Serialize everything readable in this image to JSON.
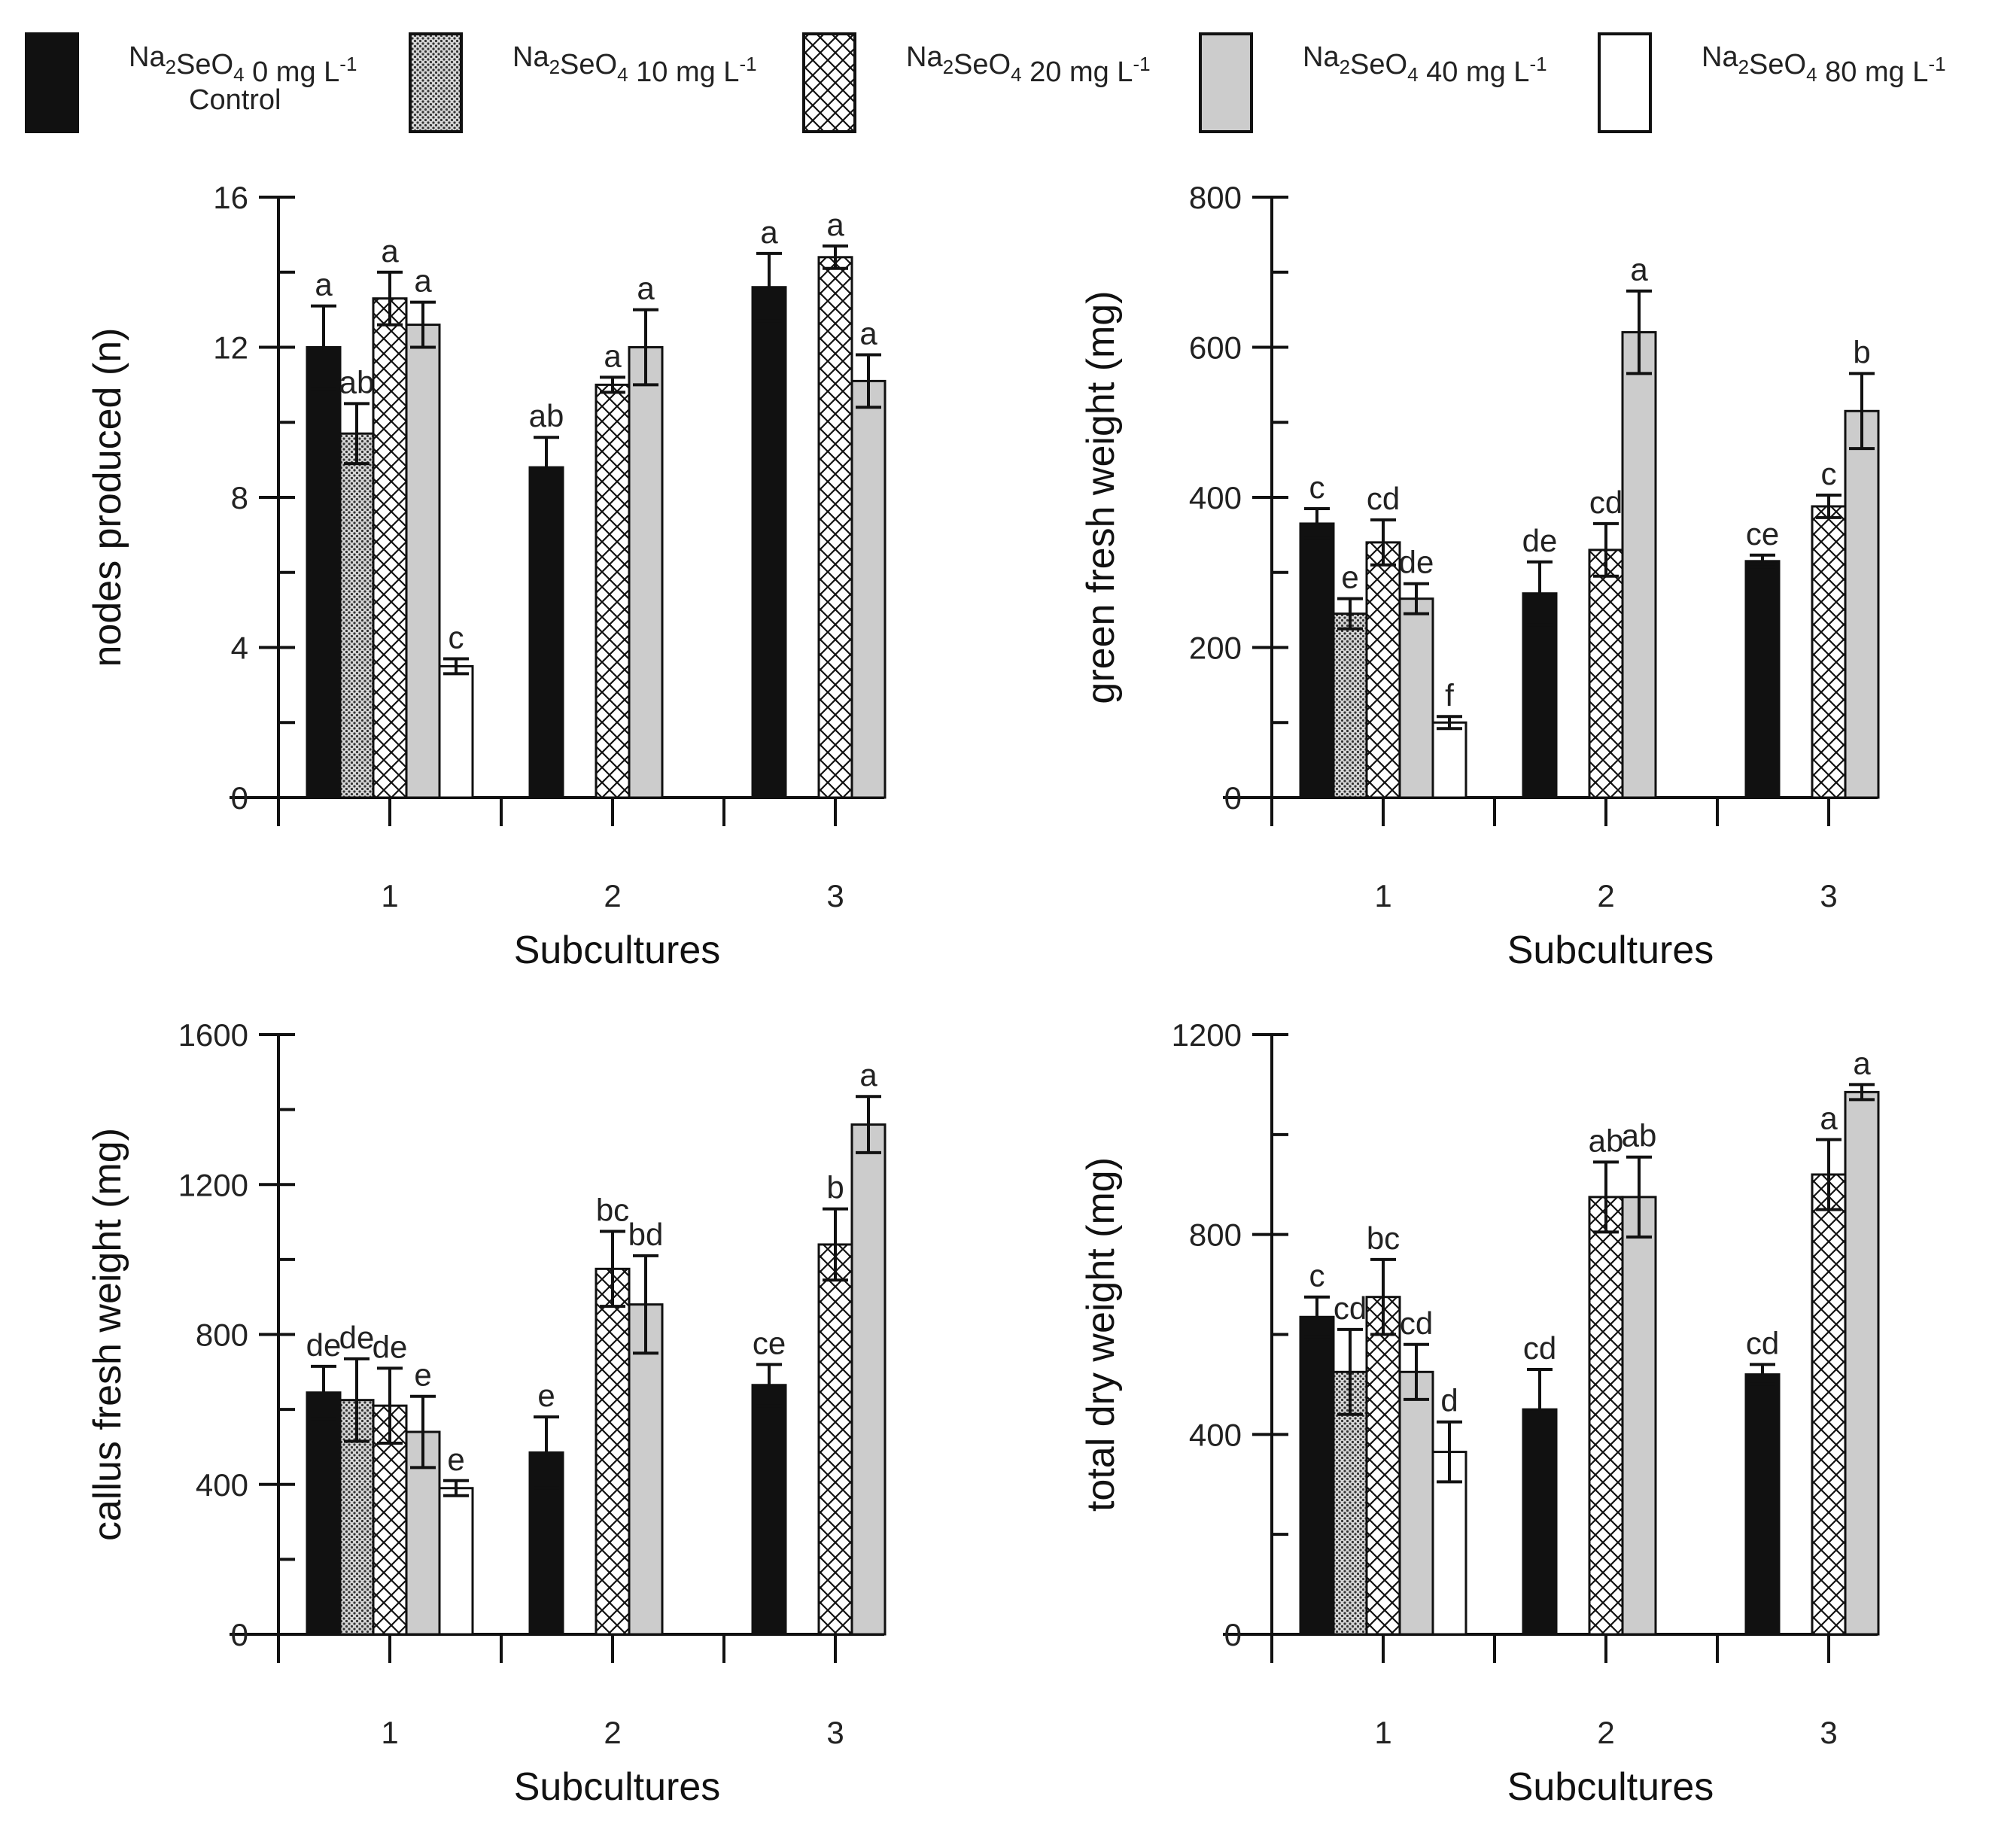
{
  "legend": {
    "items": [
      {
        "label": "Na2SeO4 0 mg L-1",
        "base": "Na",
        "sub1": "2",
        "mid": "SeO",
        "sub2": "4",
        "conc": " 0 mg L",
        "sup": "-1",
        "note": "Control",
        "fill": "#111111"
      },
      {
        "label": "Na2SeO4 10 mg L-1",
        "base": "Na",
        "sub1": "2",
        "mid": "SeO",
        "sub2": "4",
        "conc": " 10 mg L",
        "sup": "-1",
        "note": "",
        "fill": "url(#pat-dots)"
      },
      {
        "label": "Na2SeO4 20 mg L-1",
        "base": "Na",
        "sub1": "2",
        "mid": "SeO",
        "sub2": "4",
        "conc": " 20 mg L",
        "sup": "-1",
        "note": "",
        "fill": "url(#pat-cross)"
      },
      {
        "label": "Na2SeO4 40 mg L-1",
        "base": "Na",
        "sub1": "2",
        "mid": "SeO",
        "sub2": "4",
        "conc": " 40 mg L",
        "sup": "-1",
        "note": "",
        "fill": "#cccccc"
      },
      {
        "label": "Na2SeO4 80 mg L-1",
        "base": "Na",
        "sub1": "2",
        "mid": "SeO",
        "sub2": "4",
        "conc": " 80 mg L",
        "sup": "-1",
        "note": "",
        "fill": "#ffffff"
      }
    ]
  },
  "chart_data": [
    {
      "type": "bar",
      "ylabel": "nodes produced  (n)",
      "xlabel": "Subcultures",
      "categories": [
        "1",
        "2",
        "3"
      ],
      "ylim": [
        0,
        16
      ],
      "yticks": [
        "0",
        "4",
        "8",
        "12",
        "16"
      ],
      "ytick_values": [
        0,
        4,
        8,
        12,
        16
      ],
      "series_names": [
        "0 mg L-1",
        "10 mg L-1",
        "20 mg L-1",
        "40 mg L-1",
        "80 mg L-1"
      ],
      "bars": [
        [
          {
            "v": 12.0,
            "e": 1.1,
            "l": "a"
          },
          {
            "v": 9.7,
            "e": 0.8,
            "l": "ab"
          },
          {
            "v": 13.3,
            "e": 0.7,
            "l": "a"
          },
          {
            "v": 12.6,
            "e": 0.6,
            "l": "a"
          },
          {
            "v": 3.5,
            "e": 0.2,
            "l": "c"
          }
        ],
        [
          {
            "v": 8.8,
            "e": 0.8,
            "l": "ab"
          },
          null,
          {
            "v": 11.0,
            "e": 0.2,
            "l": "a"
          },
          {
            "v": 12.0,
            "e": 1.0,
            "l": "a"
          },
          null
        ],
        [
          {
            "v": 13.6,
            "e": 0.9,
            "l": "a"
          },
          null,
          {
            "v": 14.4,
            "e": 0.3,
            "l": "a"
          },
          {
            "v": 11.1,
            "e": 0.7,
            "l": "a"
          },
          null
        ]
      ]
    },
    {
      "type": "bar",
      "ylabel": "green fresh weight (mg)",
      "xlabel": "Subcultures",
      "categories": [
        "1",
        "2",
        "3"
      ],
      "ylim": [
        0,
        800
      ],
      "yticks": [
        "0",
        "200",
        "400",
        "600",
        "800"
      ],
      "ytick_values": [
        0,
        200,
        400,
        600,
        800
      ],
      "series_names": [
        "0 mg L-1",
        "10 mg L-1",
        "20 mg L-1",
        "40 mg L-1",
        "80 mg L-1"
      ],
      "bars": [
        [
          {
            "v": 365,
            "e": 20,
            "l": "c"
          },
          {
            "v": 245,
            "e": 20,
            "l": "e"
          },
          {
            "v": 340,
            "e": 30,
            "l": "cd"
          },
          {
            "v": 265,
            "e": 20,
            "l": "de"
          },
          {
            "v": 100,
            "e": 8,
            "l": "f"
          }
        ],
        [
          {
            "v": 272,
            "e": 42,
            "l": "de"
          },
          null,
          {
            "v": 330,
            "e": 35,
            "l": "cd"
          },
          {
            "v": 620,
            "e": 55,
            "l": "a"
          },
          null
        ],
        [
          {
            "v": 315,
            "e": 8,
            "l": "ce"
          },
          null,
          {
            "v": 388,
            "e": 15,
            "l": "c"
          },
          {
            "v": 515,
            "e": 50,
            "l": "b"
          },
          null
        ]
      ]
    },
    {
      "type": "bar",
      "ylabel": "callus fresh weight  (mg)",
      "xlabel": "Subcultures",
      "categories": [
        "1",
        "2",
        "3"
      ],
      "ylim": [
        0,
        1600
      ],
      "yticks": [
        "0",
        "400",
        "800",
        "1200",
        "1600"
      ],
      "ytick_values": [
        0,
        400,
        800,
        1200,
        1600
      ],
      "series_names": [
        "0 mg L-1",
        "10 mg L-1",
        "20 mg L-1",
        "40 mg L-1",
        "80 mg L-1"
      ],
      "bars": [
        [
          {
            "v": 645,
            "e": 70,
            "l": "de"
          },
          {
            "v": 625,
            "e": 110,
            "l": "de"
          },
          {
            "v": 610,
            "e": 100,
            "l": "de"
          },
          {
            "v": 540,
            "e": 95,
            "l": "e"
          },
          {
            "v": 390,
            "e": 20,
            "l": "e"
          }
        ],
        [
          {
            "v": 485,
            "e": 95,
            "l": "e"
          },
          null,
          {
            "v": 975,
            "e": 100,
            "l": "bc"
          },
          {
            "v": 880,
            "e": 130,
            "l": "bd"
          },
          null
        ],
        [
          {
            "v": 665,
            "e": 55,
            "l": "ce"
          },
          null,
          {
            "v": 1040,
            "e": 95,
            "l": "b"
          },
          {
            "v": 1360,
            "e": 75,
            "l": "a"
          },
          null
        ]
      ]
    },
    {
      "type": "bar",
      "ylabel": "total dry weight (mg)",
      "xlabel": "Subcultures",
      "categories": [
        "1",
        "2",
        "3"
      ],
      "ylim": [
        0,
        1200
      ],
      "yticks": [
        "0",
        "400",
        "800",
        "1200"
      ],
      "ytick_values": [
        0,
        400,
        800,
        1200
      ],
      "series_names": [
        "0 mg L-1",
        "10 mg L-1",
        "20 mg L-1",
        "40 mg L-1",
        "80 mg L-1"
      ],
      "bars": [
        [
          {
            "v": 635,
            "e": 40,
            "l": "c"
          },
          {
            "v": 525,
            "e": 85,
            "l": "cd"
          },
          {
            "v": 675,
            "e": 75,
            "l": "bc"
          },
          {
            "v": 525,
            "e": 55,
            "l": "cd"
          },
          {
            "v": 365,
            "e": 60,
            "l": "d"
          }
        ],
        [
          {
            "v": 450,
            "e": 80,
            "l": "cd"
          },
          null,
          {
            "v": 875,
            "e": 70,
            "l": "ab"
          },
          {
            "v": 875,
            "e": 80,
            "l": "ab"
          },
          null
        ],
        [
          {
            "v": 520,
            "e": 20,
            "l": "cd"
          },
          null,
          {
            "v": 920,
            "e": 70,
            "l": "a"
          },
          {
            "v": 1085,
            "e": 15,
            "l": "a"
          },
          null
        ]
      ]
    }
  ]
}
